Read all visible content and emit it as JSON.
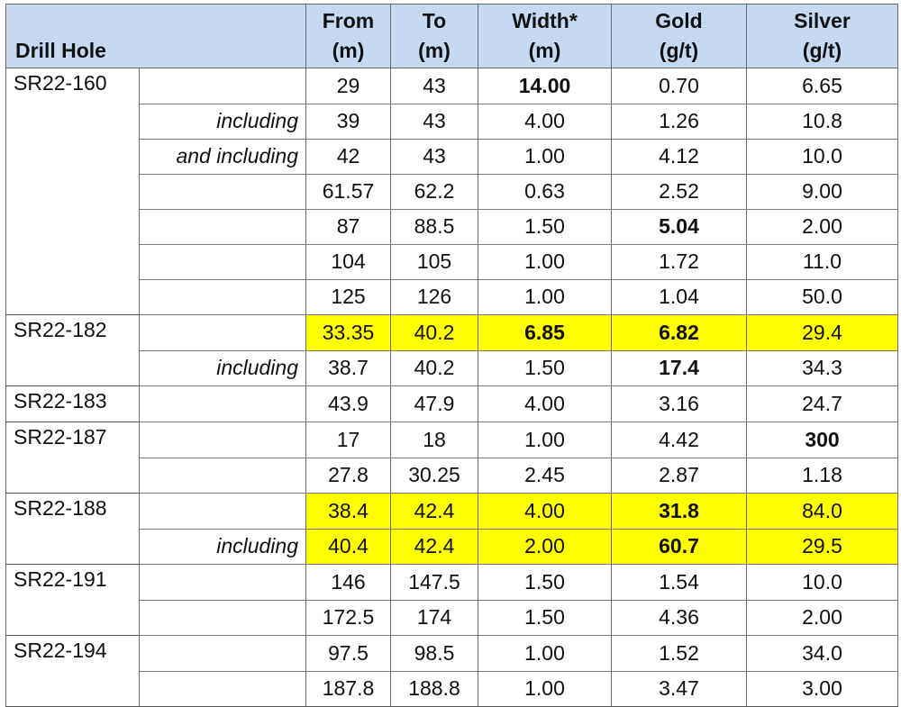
{
  "headers": {
    "drill_hole": "Drill Hole",
    "from": [
      "From",
      "(m)"
    ],
    "to": [
      "To",
      "(m)"
    ],
    "width": [
      "Width*",
      "(m)"
    ],
    "gold": [
      "Gold",
      "(g/t)"
    ],
    "silver": [
      "Silver",
      "(g/t)"
    ]
  },
  "colors": {
    "header_bg": "#c6d9f1",
    "highlight": "#ffff00"
  },
  "rows": [
    {
      "hole": "SR22-160",
      "note": "",
      "from": "29",
      "to": "43",
      "width": "14.00",
      "gold": "0.70",
      "silver": "6.65"
    },
    {
      "hole": "",
      "note": "including",
      "from": "39",
      "to": "43",
      "width": "4.00",
      "gold": "1.26",
      "silver": "10.8"
    },
    {
      "hole": "",
      "note": "and including",
      "from": "42",
      "to": "43",
      "width": "1.00",
      "gold": "4.12",
      "silver": "10.0"
    },
    {
      "hole": "",
      "note": "",
      "from": "61.57",
      "to": "62.2",
      "width": "0.63",
      "gold": "2.52",
      "silver": "9.00"
    },
    {
      "hole": "",
      "note": "",
      "from": "87",
      "to": "88.5",
      "width": "1.50",
      "gold": "5.04",
      "silver": "2.00"
    },
    {
      "hole": "",
      "note": "",
      "from": "104",
      "to": "105",
      "width": "1.00",
      "gold": "1.72",
      "silver": "11.0"
    },
    {
      "hole": "",
      "note": "",
      "from": "125",
      "to": "126",
      "width": "1.00",
      "gold": "1.04",
      "silver": "50.0"
    },
    {
      "hole": "SR22-182",
      "note": "",
      "from": "33.35",
      "to": "40.2",
      "width": "6.85",
      "gold": "6.82",
      "silver": "29.4"
    },
    {
      "hole": "",
      "note": "including",
      "from": "38.7",
      "to": "40.2",
      "width": "1.50",
      "gold": "17.4",
      "silver": "34.3"
    },
    {
      "hole": "SR22-183",
      "note": "",
      "from": "43.9",
      "to": "47.9",
      "width": "4.00",
      "gold": "3.16",
      "silver": "24.7"
    },
    {
      "hole": "SR22-187",
      "note": "",
      "from": "17",
      "to": "18",
      "width": "1.00",
      "gold": "4.42",
      "silver": "300"
    },
    {
      "hole": "",
      "note": "",
      "from": "27.8",
      "to": "30.25",
      "width": "2.45",
      "gold": "2.87",
      "silver": "1.18"
    },
    {
      "hole": "SR22-188",
      "note": "",
      "from": "38.4",
      "to": "42.4",
      "width": "4.00",
      "gold": "31.8",
      "silver": "84.0"
    },
    {
      "hole": "",
      "note": "including",
      "from": "40.4",
      "to": "42.4",
      "width": "2.00",
      "gold": "60.7",
      "silver": "29.5"
    },
    {
      "hole": "SR22-191",
      "note": "",
      "from": "146",
      "to": "147.5",
      "width": "1.50",
      "gold": "1.54",
      "silver": "10.0"
    },
    {
      "hole": "",
      "note": "",
      "from": "172.5",
      "to": "174",
      "width": "1.50",
      "gold": "4.36",
      "silver": "2.00"
    },
    {
      "hole": "SR22-194",
      "note": "",
      "from": "97.5",
      "to": "98.5",
      "width": "1.00",
      "gold": "1.52",
      "silver": "34.0"
    },
    {
      "hole": "",
      "note": "",
      "from": "187.8",
      "to": "188.8",
      "width": "1.00",
      "gold": "3.47",
      "silver": "3.00"
    }
  ]
}
